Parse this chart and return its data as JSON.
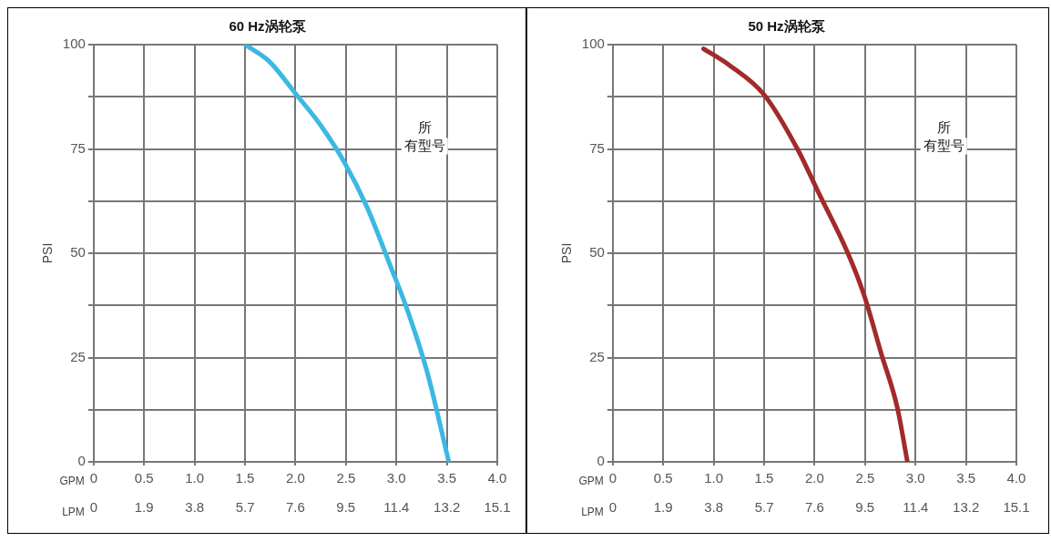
{
  "chart_data": [
    {
      "type": "line",
      "title": "60 Hz涡轮泵",
      "xlabel": "GPM",
      "x2label": "LPM",
      "ylabel": "PSI",
      "annotations": [
        "所有型号"
      ],
      "x": [
        1.5,
        1.74,
        2.01,
        2.24,
        2.48,
        2.71,
        2.94,
        3.1,
        3.3,
        3.52
      ],
      "series": [
        {
          "color": "#3bb8e3",
          "values": [
            100,
            96,
            88,
            81,
            72,
            61,
            47,
            37,
            22,
            0
          ]
        }
      ],
      "xlim": [
        0,
        4
      ],
      "xticks": [
        0,
        0.5,
        {
          "value": 1,
          "label": "1.0"
        },
        1.5,
        {
          "value": 2,
          "label": "2.0"
        },
        2.5,
        {
          "value": 3,
          "label": "3.0"
        },
        3.5,
        {
          "value": 4,
          "label": "4.0"
        }
      ],
      "x2lim": [
        0,
        15.14
      ],
      "x2ticks": [
        0,
        {
          "value": 1.89,
          "label": "1.9"
        },
        {
          "value": 3.79,
          "label": "3.8"
        },
        {
          "value": 5.68,
          "label": "5.7"
        },
        {
          "value": 7.57,
          "label": "7.6"
        },
        {
          "value": 9.46,
          "label": "9.5"
        },
        {
          "value": 11.36,
          "label": "11.4"
        },
        {
          "value": 13.25,
          "label": "13.2"
        },
        {
          "value": 15.14,
          "label": "15.1"
        }
      ],
      "ylim": [
        0,
        100
      ],
      "yticks": [
        0,
        {
          "value": 12.5,
          "label": null
        },
        25,
        {
          "value": 37.5,
          "label": null
        },
        50,
        {
          "value": 62.5,
          "label": null
        },
        75,
        {
          "value": 87.5,
          "label": null
        },
        100
      ],
      "grid": true,
      "marker": "none",
      "line_style": "solid"
    },
    {
      "type": "line",
      "title": "50 Hz涡轮泵",
      "xlabel": "GPM",
      "x2label": "LPM",
      "ylabel": "PSI",
      "annotations": [
        "所有型号"
      ],
      "x": [
        0.9,
        1.16,
        1.5,
        1.83,
        2.03,
        2.33,
        2.49,
        2.66,
        2.82,
        2.92
      ],
      "series": [
        {
          "color": "#a32a2a",
          "values": [
            99,
            95,
            88,
            75,
            65,
            50,
            40,
            26,
            13,
            0
          ]
        }
      ],
      "xlim": [
        0,
        4
      ],
      "xticks": [
        0,
        0.5,
        {
          "value": 1,
          "label": "1.0"
        },
        1.5,
        {
          "value": 2,
          "label": "2.0"
        },
        2.5,
        {
          "value": 3,
          "label": "3.0"
        },
        3.5,
        {
          "value": 4,
          "label": "4.0"
        }
      ],
      "x2lim": [
        0,
        15.14
      ],
      "x2ticks": [
        0,
        {
          "value": 1.89,
          "label": "1.9"
        },
        {
          "value": 3.79,
          "label": "3.8"
        },
        {
          "value": 5.68,
          "label": "5.7"
        },
        {
          "value": 7.57,
          "label": "7.6"
        },
        {
          "value": 9.46,
          "label": "9.5"
        },
        {
          "value": 11.36,
          "label": "11.4"
        },
        {
          "value": 13.25,
          "label": "13.2"
        },
        {
          "value": 15.14,
          "label": "15.1"
        }
      ],
      "ylim": [
        0,
        100
      ],
      "yticks": [
        0,
        {
          "value": 12.5,
          "label": null
        },
        25,
        {
          "value": 37.5,
          "label": null
        },
        50,
        {
          "value": 62.5,
          "label": null
        },
        75,
        {
          "value": 87.5,
          "label": null
        },
        100
      ],
      "grid": true,
      "marker": "none",
      "line_style": "solid"
    }
  ]
}
